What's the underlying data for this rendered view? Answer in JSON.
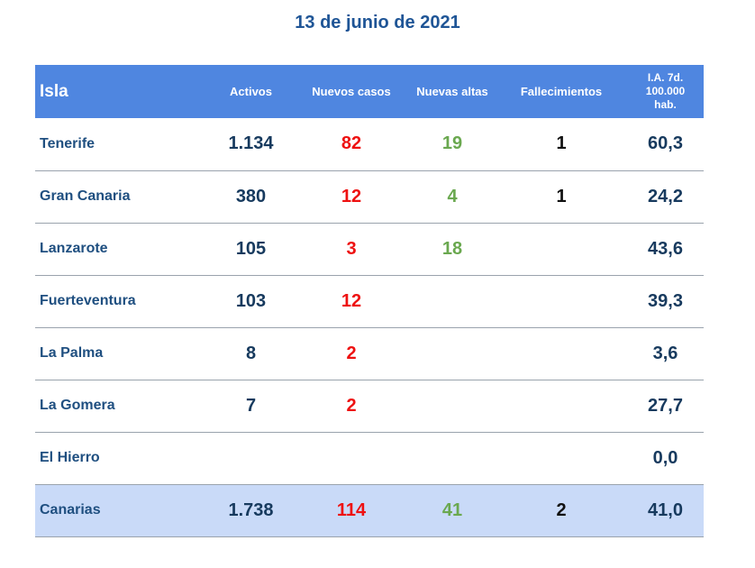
{
  "title": "13 de junio de 2021",
  "headers": {
    "isla": "Isla",
    "activos": "Activos",
    "nuevos_casos": "Nuevos casos",
    "nuevas_altas": "Nuevas altas",
    "fallecimientos": "Fallecimientos",
    "ia_line1": "I.A. 7d.",
    "ia_line2": "100.000",
    "ia_line3": "hab."
  },
  "rows": [
    {
      "isla": "Tenerife",
      "activos": "1.134",
      "nuevos_casos": "82",
      "nuevas_altas": "19",
      "fallecimientos": "1",
      "ia": "60,3"
    },
    {
      "isla": "Gran Canaria",
      "activos": "380",
      "nuevos_casos": "12",
      "nuevas_altas": "4",
      "fallecimientos": "1",
      "ia": "24,2"
    },
    {
      "isla": "Lanzarote",
      "activos": "105",
      "nuevos_casos": "3",
      "nuevas_altas": "18",
      "fallecimientos": "",
      "ia": "43,6"
    },
    {
      "isla": "Fuerteventura",
      "activos": "103",
      "nuevos_casos": "12",
      "nuevas_altas": "",
      "fallecimientos": "",
      "ia": "39,3"
    },
    {
      "isla": "La Palma",
      "activos": "8",
      "nuevos_casos": "2",
      "nuevas_altas": "",
      "fallecimientos": "",
      "ia": "3,6"
    },
    {
      "isla": "La Gomera",
      "activos": "7",
      "nuevos_casos": "2",
      "nuevas_altas": "",
      "fallecimientos": "",
      "ia": "27,7"
    },
    {
      "isla": "El Hierro",
      "activos": "",
      "nuevos_casos": "",
      "nuevas_altas": "",
      "fallecimientos": "",
      "ia": "0,0"
    },
    {
      "isla": "Canarias",
      "activos": "1.738",
      "nuevos_casos": "114",
      "nuevas_altas": "41",
      "fallecimientos": "2",
      "ia": "41,0"
    }
  ],
  "colors": {
    "header_bg": "#4f86e0",
    "total_row_bg": "#c9daf8",
    "title": "#1f5596",
    "nuevos_casos": "#ee1111",
    "nuevas_altas": "#6aa84f"
  }
}
